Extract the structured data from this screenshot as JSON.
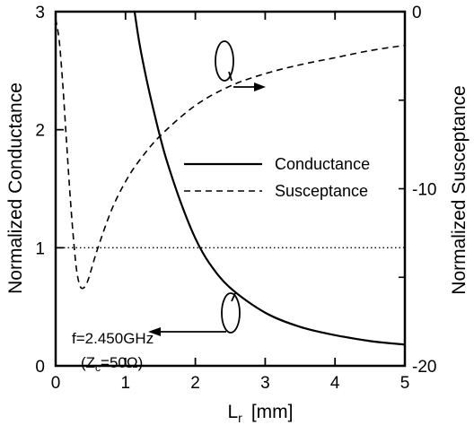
{
  "chart_data": {
    "type": "line",
    "xlabel": "L",
    "xlabel_sub": "r",
    "xlabel_unit": "[mm]",
    "ylabel_left": "Normalized  Conductance",
    "ylabel_right": "Normalized  Susceptance",
    "xlim": [
      0,
      5
    ],
    "ylim_left": [
      0,
      3
    ],
    "ylim_right": [
      -20,
      0
    ],
    "x_ticks": [
      "0",
      "1",
      "2",
      "3",
      "4",
      "5"
    ],
    "y_left_ticks": [
      "0",
      "1",
      "2",
      "3"
    ],
    "y_right_ticks": [
      "-20",
      "-10",
      "0"
    ],
    "legend": {
      "placement": "center-right",
      "items": [
        {
          "label": "Conductance",
          "style": "solid"
        },
        {
          "label": "Susceptance",
          "style": "dashed"
        }
      ]
    },
    "reference_line": {
      "axis": "left",
      "y": 1,
      "style": "dotted"
    },
    "annotations": {
      "frequency": "f=2.450GHz",
      "impedance_prefix": "(Z",
      "impedance_sub": "c",
      "impedance_suffix": "=50Ω)"
    },
    "series": [
      {
        "name": "Conductance",
        "axis": "left",
        "x": [
          1.13,
          1.2,
          1.3,
          1.4,
          1.5,
          1.6,
          1.8,
          2.0,
          2.2,
          2.5,
          3.0,
          3.5,
          4.0,
          4.5,
          5.0
        ],
        "y": [
          3.0,
          2.73,
          2.43,
          2.17,
          1.93,
          1.72,
          1.37,
          1.08,
          0.87,
          0.66,
          0.45,
          0.33,
          0.26,
          0.21,
          0.18
        ]
      },
      {
        "name": "Susceptance",
        "axis": "right",
        "x": [
          0.0,
          0.05,
          0.1,
          0.15,
          0.2,
          0.25,
          0.3,
          0.35,
          0.4,
          0.45,
          0.5,
          0.6,
          0.8,
          1.0,
          1.2,
          1.5,
          2.0,
          2.5,
          3.0,
          3.5,
          4.0,
          4.5,
          5.0
        ],
        "y": [
          -0.4,
          -1.6,
          -4.0,
          -7.0,
          -10.0,
          -12.6,
          -14.6,
          -15.5,
          -15.6,
          -15.3,
          -14.7,
          -13.4,
          -11.2,
          -9.6,
          -8.4,
          -7.0,
          -5.3,
          -4.2,
          -3.5,
          -3.0,
          -2.6,
          -2.2,
          -1.9
        ]
      }
    ]
  }
}
